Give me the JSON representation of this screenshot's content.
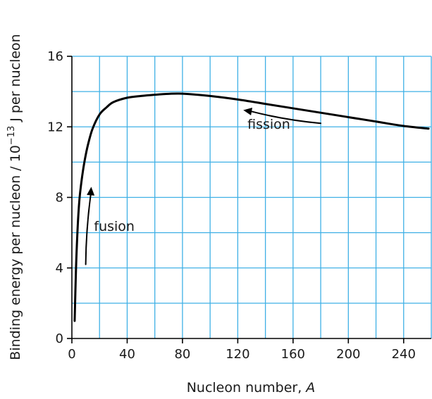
{
  "chart_data": {
    "type": "line",
    "title": "",
    "xlabel": "Nucleon number, ",
    "xlabel_var": "A",
    "ylabel_prefix": "Binding energy per nucleon / 10",
    "ylabel_exp": "−13",
    "ylabel_suffix": " J per nucleon",
    "xlim": [
      0,
      260
    ],
    "ylim": [
      0,
      16
    ],
    "x_ticks": [
      0,
      40,
      80,
      120,
      160,
      200,
      240
    ],
    "y_ticks": [
      0,
      4,
      8,
      12,
      16
    ],
    "x_grid_step": 20,
    "y_grid_step": 2,
    "grid": true,
    "grid_color": "#3fb0e6",
    "series": [
      {
        "x": [
          2,
          3,
          4,
          5,
          6,
          8,
          10,
          12,
          15,
          20,
          25,
          30,
          40,
          50,
          60,
          70,
          80,
          100,
          120,
          140,
          160,
          180,
          200,
          220,
          240,
          258
        ],
        "y": [
          1.0,
          4.0,
          6.0,
          7.4,
          8.3,
          9.5,
          10.4,
          11.1,
          11.9,
          12.7,
          13.1,
          13.4,
          13.65,
          13.75,
          13.82,
          13.87,
          13.88,
          13.75,
          13.55,
          13.3,
          13.05,
          12.8,
          12.55,
          12.3,
          12.05,
          11.9
        ],
        "color": "#000000"
      }
    ],
    "annotations": [
      {
        "text": "fusion",
        "text_x": 16,
        "text_y": 6.1,
        "arrow_from": [
          10,
          4.2
        ],
        "arrow_to": [
          14,
          8.6
        ]
      },
      {
        "text": "fission",
        "text_x": 127,
        "text_y": 11.9,
        "arrow_from": [
          180,
          12.2
        ],
        "arrow_to": [
          124,
          12.95
        ]
      }
    ]
  }
}
